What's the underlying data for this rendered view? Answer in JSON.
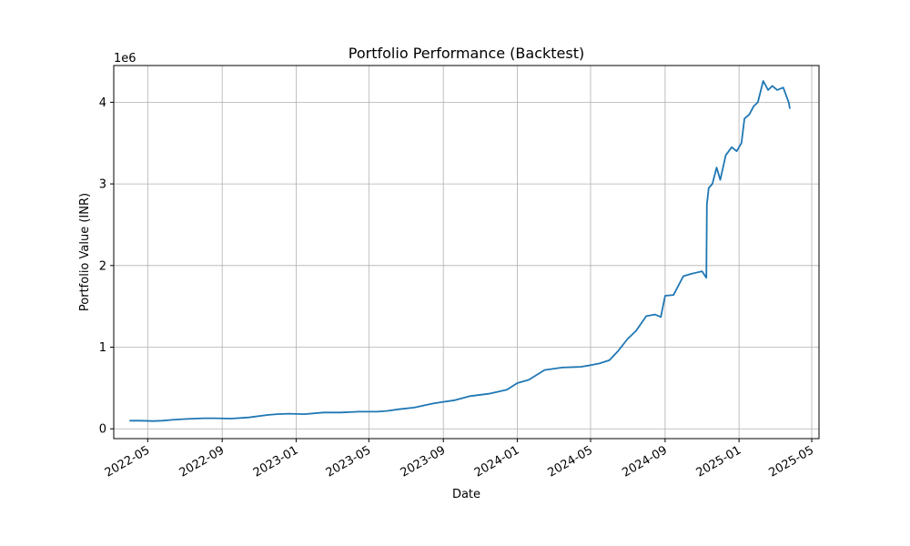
{
  "chart_data": {
    "type": "line",
    "title": "Portfolio Performance (Backtest)",
    "xlabel": "Date",
    "ylabel": "Portfolio Value (INR)",
    "y_offset_label": "1e6",
    "y_multiplier": 1000000,
    "xlim": [
      "2022-03-06",
      "2025-05-13"
    ],
    "ylim": [
      -0.12,
      4.45
    ],
    "grid": true,
    "line_color": "#1f77b4",
    "x_ticks": [
      "2022-05",
      "2022-09",
      "2023-01",
      "2023-05",
      "2023-09",
      "2024-01",
      "2024-05",
      "2024-09",
      "2025-01",
      "2025-05"
    ],
    "y_ticks": [
      "0",
      "1",
      "2",
      "3",
      "4"
    ],
    "series": [
      {
        "x": [
          "2022-04-01",
          "2022-04-20",
          "2022-05-10",
          "2022-05-25",
          "2022-06-10",
          "2022-07-01",
          "2022-08-01",
          "2022-08-20",
          "2022-09-15",
          "2022-10-15",
          "2022-11-15",
          "2022-12-01",
          "2022-12-20",
          "2023-01-15",
          "2023-02-15",
          "2023-03-15",
          "2023-04-15",
          "2023-05-15",
          "2023-06-01",
          "2023-06-20",
          "2023-07-15",
          "2023-08-15",
          "2023-09-01",
          "2023-09-20",
          "2023-10-15",
          "2023-11-15",
          "2023-12-15",
          "2024-01-01",
          "2024-01-20",
          "2024-02-15",
          "2024-03-15",
          "2024-04-15",
          "2024-05-01",
          "2024-05-15",
          "2024-06-01",
          "2024-06-15",
          "2024-07-01",
          "2024-07-15",
          "2024-08-01",
          "2024-08-15",
          "2024-08-25",
          "2024-09-01",
          "2024-09-15",
          "2024-10-01",
          "2024-10-15",
          "2024-11-01",
          "2024-11-08",
          "2024-11-09",
          "2024-11-12",
          "2024-11-18",
          "2024-11-25",
          "2024-12-01",
          "2024-12-10",
          "2024-12-20",
          "2024-12-28",
          "2025-01-05",
          "2025-01-10",
          "2025-01-18",
          "2025-01-25",
          "2025-02-01",
          "2025-02-10",
          "2025-02-18",
          "2025-02-25",
          "2025-03-05",
          "2025-03-15",
          "2025-03-24",
          "2025-03-26"
        ],
        "values": [
          0.1,
          0.1,
          0.095,
          0.1,
          0.11,
          0.12,
          0.13,
          0.13,
          0.125,
          0.14,
          0.17,
          0.18,
          0.185,
          0.18,
          0.2,
          0.2,
          0.21,
          0.21,
          0.22,
          0.24,
          0.26,
          0.31,
          0.33,
          0.35,
          0.4,
          0.43,
          0.48,
          0.56,
          0.6,
          0.72,
          0.75,
          0.76,
          0.78,
          0.8,
          0.84,
          0.95,
          1.1,
          1.2,
          1.38,
          1.4,
          1.37,
          1.63,
          1.64,
          1.87,
          1.9,
          1.93,
          1.85,
          2.75,
          2.95,
          3.0,
          3.2,
          3.05,
          3.35,
          3.45,
          3.4,
          3.5,
          3.8,
          3.85,
          3.95,
          4.0,
          4.26,
          4.15,
          4.2,
          4.15,
          4.18,
          4.0,
          3.92
        ]
      }
    ]
  }
}
